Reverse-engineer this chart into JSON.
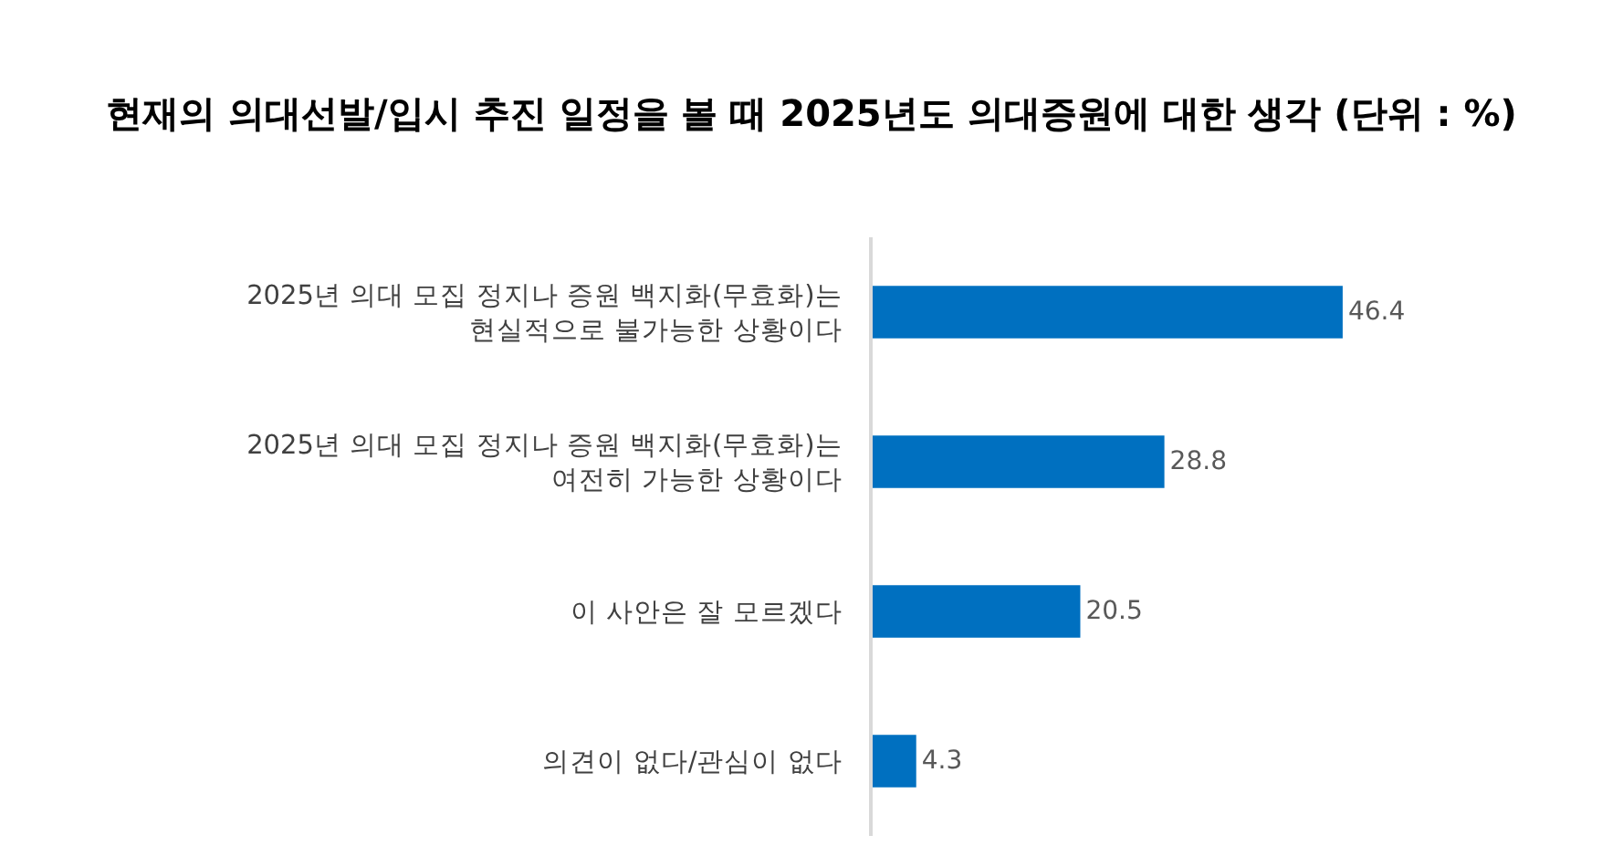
{
  "chart_data": {
    "type": "bar",
    "orientation": "horizontal",
    "title": "현재의 의대선발/입시 추진 일정을 볼 때 2025년도 의대증원에 대한 생각 (단위 : %)",
    "categories": [
      "2025년 의대 모집 정지나 증원 백지화(무효화)는\n현실적으로 불가능한 상황이다",
      "2025년 의대 모집 정지나 증원 백지화(무효화)는\n여전히 가능한 상황이다",
      "이 사안은 잘 모르겠다",
      "의견이 없다/관심이 없다"
    ],
    "values": [
      46.4,
      28.8,
      20.5,
      4.3
    ],
    "color": "#0070c0",
    "data_labels": true,
    "tick_labels": "y",
    "grid": false
  }
}
